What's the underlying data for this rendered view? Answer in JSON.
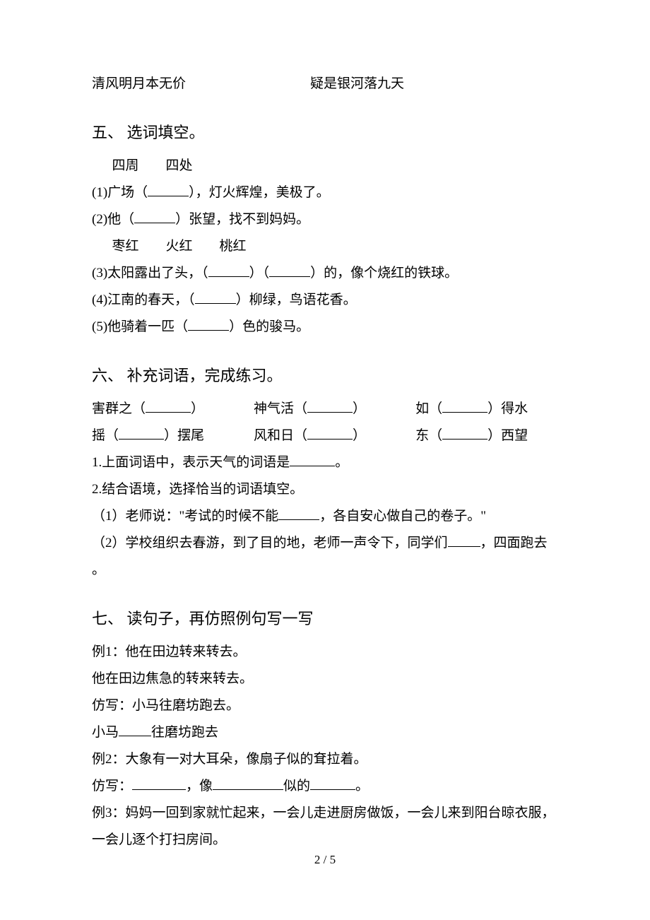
{
  "topRow": {
    "left": "清风明月本无价",
    "right": "疑是银河落九天"
  },
  "section5": {
    "title": "五、 选词填空。",
    "wordsA": "四周　　四处",
    "q1_a": "(1)广场（",
    "q1_b": "），灯火辉煌，美极了。",
    "q2_a": "(2)他（",
    "q2_b": "）张望，找不到妈妈。",
    "wordsB": "枣红　　火红　　桃红",
    "q3_a": "(3)太阳露出了头，（",
    "q3_b": "）（",
    "q3_c": "）的，像个烧红的铁球。",
    "q4_a": "(4)江南的春天，（",
    "q4_b": "）柳绿，鸟语花香。",
    "q5_a": "(5)他骑着一匹（",
    "q5_b": "）色的骏马。"
  },
  "section6": {
    "title": "六、 补充词语，完成练习。",
    "r1_a": "害群之（",
    "r1_b": "）",
    "r1_c": "神气活（",
    "r1_d": "）",
    "r1_e": "如（",
    "r1_f": "）得水",
    "r2_a": "摇（",
    "r2_b": "）摆尾",
    "r2_c": "风和日（",
    "r2_d": "）",
    "r2_e": "东（",
    "r2_f": "）西望",
    "p1_a": "1.上面词语中，表示天气的词语是",
    "p1_b": "。",
    "p2": "2.结合语境，选择恰当的词语填空。",
    "p2_1a": "（1）老师说：\"考试的时候不能",
    "p2_1b": "，各自安心做自己的卷子。\"",
    "p2_2a": "（2）学校组织去春游，到了目的地，老师一声令下，同学们",
    "p2_2b": "，四面跑去",
    "p2_2c": "。"
  },
  "section7": {
    "title": "七、 读句子，再仿照例句写一写",
    "l1": "例1：他在田边转来转去。",
    "l2": "他在田边焦急的转来转去。",
    "l3": "仿写：小马往磨坊跑去。",
    "l4a": "小马",
    "l4b": "往磨坊跑去",
    "l5": "例2：大象有一对大耳朵，像扇子似的耷拉着。",
    "l6a": "仿写：",
    "l6b": "，像",
    "l6c": "似的",
    "l6d": "。",
    "l7": "例3：妈妈一回到家就忙起来，一会儿走进厨房做饭，一会儿来到阳台晾衣服，",
    "l8": "一会儿逐个打扫房间。"
  },
  "footer": "2 / 5"
}
